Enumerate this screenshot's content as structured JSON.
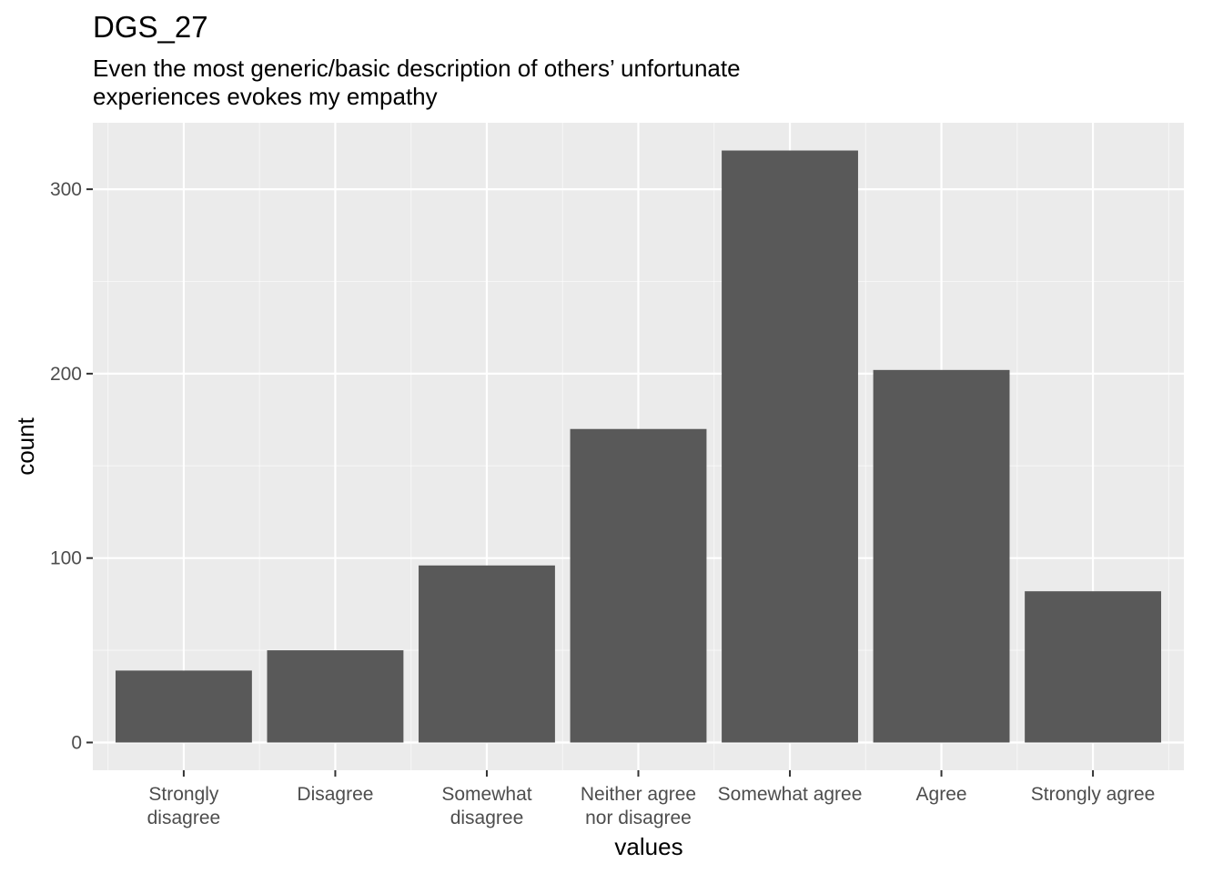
{
  "chart_data": {
    "type": "bar",
    "title": "DGS_27",
    "subtitle": [
      "Even the most generic/basic description of others’ unfortunate",
      "experiences evokes my empathy"
    ],
    "xlabel": "values",
    "ylabel": "count",
    "categories": [
      [
        "Strongly",
        "disagree"
      ],
      [
        "Disagree"
      ],
      [
        "Somewhat",
        "disagree"
      ],
      [
        "Neither agree",
        "nor disagree"
      ],
      [
        "Somewhat agree"
      ],
      [
        "Agree"
      ],
      [
        "Strongly agree"
      ]
    ],
    "values": [
      39,
      50,
      96,
      170,
      321,
      202,
      82
    ],
    "ylim": [
      -15.05,
      336.05
    ],
    "yticks": [
      0,
      100,
      200,
      300
    ],
    "grid": true,
    "legend": "none",
    "colors": {
      "bar": "#595959",
      "panel": "#ebebeb",
      "grid_major": "#ffffff",
      "tick_text": "#4d4d4d"
    }
  }
}
